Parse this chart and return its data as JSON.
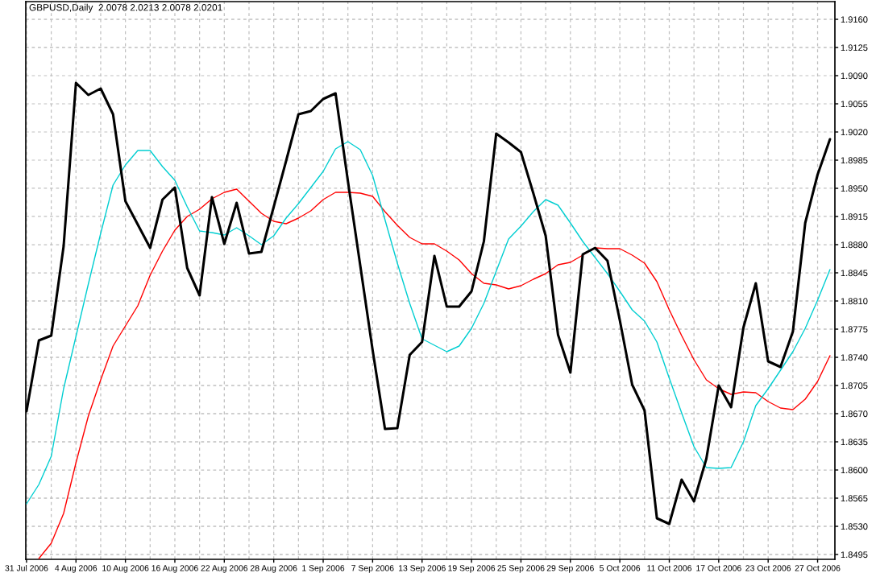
{
  "chart_data": {
    "type": "line",
    "title": "GBPUSD,Daily  2.0078 2.0213 2.0078 2.0201",
    "categories": [
      "31 Jul 2006",
      null,
      null,
      null,
      "4 Aug 2006",
      null,
      null,
      null,
      "10 Aug 2006",
      null,
      null,
      null,
      "16 Aug 2006",
      null,
      null,
      null,
      "22 Aug 2006",
      null,
      null,
      null,
      "28 Aug 2006",
      null,
      null,
      null,
      "1 Sep 2006",
      null,
      null,
      null,
      "7 Sep 2006",
      null,
      null,
      null,
      "13 Sep 2006",
      null,
      null,
      null,
      "19 Sep 2006",
      null,
      null,
      null,
      "25 Sep 2006",
      null,
      null,
      null,
      "29 Sep 2006",
      null,
      null,
      null,
      "5 Oct 2006",
      null,
      null,
      null,
      "11 Oct 2006",
      null,
      null,
      null,
      "17 Oct 2006",
      null,
      null,
      null,
      "23 Oct 2006",
      null,
      null,
      null,
      "27 Oct 2006",
      null
    ],
    "series": [
      {
        "color": "#000000",
        "values": [
          1.8673,
          1.8761,
          1.8767,
          1.8878,
          1.9081,
          1.9066,
          1.9074,
          1.9042,
          1.8934,
          1.8905,
          1.8876,
          1.8936,
          1.8951,
          1.8851,
          1.8817,
          1.8939,
          1.8881,
          1.8932,
          1.8869,
          1.8871,
          1.8927,
          1.8984,
          1.9042,
          1.9046,
          1.9061,
          1.9068,
          1.8959,
          1.8854,
          1.8749,
          1.8651,
          1.8652,
          1.8743,
          1.8759,
          1.8866,
          1.8803,
          1.8803,
          1.8822,
          1.8884,
          1.9018,
          1.9007,
          1.8995,
          1.8944,
          1.8891,
          1.8768,
          1.8721,
          1.8868,
          1.8876,
          1.886,
          1.8786,
          1.8706,
          1.8674,
          1.854,
          1.8533,
          1.8588,
          1.8561,
          1.8614,
          1.8705,
          1.8678,
          1.8777,
          1.8832,
          1.8735,
          1.8728,
          1.8772,
          1.8907,
          1.8967,
          1.9011
        ]
      },
      {
        "color": "#00ced1",
        "values": [
          1.8558,
          1.8582,
          1.8617,
          1.8701,
          1.8766,
          1.8831,
          1.8894,
          1.8954,
          1.8979,
          1.8997,
          1.8997,
          1.8977,
          1.896,
          1.8927,
          1.8897,
          1.8895,
          1.8892,
          1.8901,
          1.8891,
          1.888,
          1.8891,
          1.8913,
          1.8931,
          1.8951,
          1.8971,
          1.8999,
          1.9008,
          1.8998,
          1.8966,
          1.8911,
          1.8857,
          1.8807,
          1.8763,
          1.8755,
          1.8747,
          1.8754,
          1.8776,
          1.8807,
          1.8847,
          1.8887,
          1.8903,
          1.8921,
          1.8936,
          1.8929,
          1.8907,
          1.8884,
          1.8864,
          1.8844,
          1.8822,
          1.8799,
          1.8785,
          1.8759,
          1.8714,
          1.8671,
          1.8629,
          1.8603,
          1.8602,
          1.8603,
          1.8635,
          1.868,
          1.8701,
          1.8724,
          1.8747,
          1.8776,
          1.8811,
          1.8849
        ]
      },
      {
        "color": "#ff0000",
        "values": [
          null,
          1.849,
          1.8509,
          1.8546,
          1.8609,
          1.8667,
          1.8712,
          1.8754,
          1.8779,
          1.8804,
          1.8842,
          1.8872,
          1.8898,
          1.8915,
          1.8924,
          1.8937,
          1.8945,
          1.8949,
          1.8934,
          1.8919,
          1.8909,
          1.8906,
          1.8913,
          1.8922,
          1.8936,
          1.8945,
          1.8945,
          1.8944,
          1.894,
          1.8921,
          1.8904,
          1.8889,
          1.8881,
          1.8881,
          1.8872,
          1.8861,
          1.8844,
          1.8832,
          1.883,
          1.8825,
          1.8829,
          1.8837,
          1.8844,
          1.8855,
          1.8858,
          1.8867,
          1.8876,
          1.8875,
          1.8875,
          1.8867,
          1.8857,
          1.8834,
          1.8799,
          1.8767,
          1.8737,
          1.8712,
          1.8701,
          1.8694,
          1.8697,
          1.8696,
          1.8685,
          1.8677,
          1.8675,
          1.8688,
          1.871,
          1.8742
        ]
      }
    ],
    "ylim": [
      1.8489,
      1.9182
    ],
    "yticks": [
      {
        "value": 1.916,
        "label": "1.9160"
      },
      1.9125,
      {
        "value": 1.909,
        "label": "1.9090"
      },
      1.9055,
      {
        "value": 1.902,
        "label": "1.9020"
      },
      1.8985,
      {
        "value": 1.895,
        "label": "1.8950"
      },
      1.8915,
      {
        "value": 1.888,
        "label": "1.8880"
      },
      1.8845,
      {
        "value": 1.881,
        "label": "1.8810"
      },
      1.8775,
      {
        "value": 1.874,
        "label": "1.8740"
      },
      1.8705,
      {
        "value": 1.867,
        "label": "1.8670"
      },
      1.8635,
      {
        "value": 1.86,
        "label": "1.8600"
      },
      1.8565,
      {
        "value": 1.853,
        "label": "1.8530"
      },
      1.8495
    ],
    "grid": true
  }
}
